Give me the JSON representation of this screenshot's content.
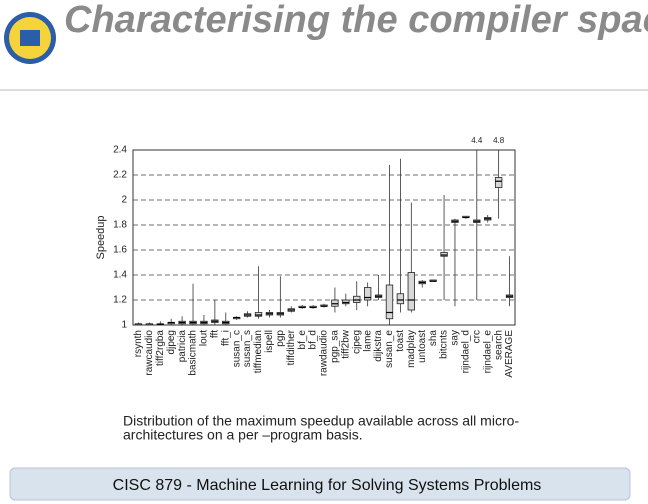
{
  "title": "Characterising the compiler space",
  "caption": [
    "Distribution of the maximum speedup available across all micro-",
    "architectures on a per –program basis."
  ],
  "footer": "CISC 879 - Machine Learning for Solving Systems Problems",
  "chart_data": {
    "type": "box",
    "ylabel": "Speedup",
    "categories": [
      "rsynth",
      "rawcaudio",
      "tiff2rgba",
      "djpeg",
      "patricia",
      "basicmath",
      "lout",
      "fft",
      "fft_i",
      "susan_c",
      "susan_s",
      "tiffmedian",
      "ispell",
      "pgp",
      "tiffdither",
      "bf_e",
      "bf_d",
      "rawdaudio",
      "pgp_sa",
      "tiff2bw",
      "cjpeg",
      "lame",
      "dijkstra",
      "susan_e",
      "toast",
      "madplay",
      "untoast",
      "sha",
      "bitcnts",
      "say",
      "rijndael_d",
      "crc",
      "rijndael_e",
      "search",
      "AVERAGE"
    ],
    "min": [
      1,
      1,
      1,
      1,
      1,
      1,
      1,
      1,
      1,
      1.04,
      1.06,
      1.05,
      1.06,
      1.06,
      1.1,
      1.13,
      1.13,
      1.14,
      1.1,
      1.15,
      1.12,
      1.15,
      1.2,
      1.0,
      1.1,
      1.1,
      1.3,
      1.35,
      1.2,
      1.15,
      1.85,
      1.2,
      1.82,
      1.85,
      1.15
    ],
    "q1": [
      1,
      1,
      1,
      1.01,
      1.01,
      1.01,
      1.01,
      1.02,
      1.01,
      1.05,
      1.07,
      1.07,
      1.08,
      1.08,
      1.11,
      1.14,
      1.14,
      1.15,
      1.15,
      1.17,
      1.18,
      1.2,
      1.22,
      1.05,
      1.17,
      1.12,
      1.33,
      1.35,
      1.55,
      1.82,
      1.86,
      1.82,
      1.84,
      2.1,
      1.22
    ],
    "median": [
      1,
      1,
      1.005,
      1.02,
      1.02,
      1.02,
      1.02,
      1.03,
      1.02,
      1.06,
      1.08,
      1.08,
      1.09,
      1.09,
      1.12,
      1.14,
      1.14,
      1.15,
      1.17,
      1.18,
      1.2,
      1.22,
      1.23,
      1.1,
      1.2,
      1.2,
      1.34,
      1.35,
      1.56,
      1.83,
      1.86,
      1.83,
      1.85,
      2.15,
      1.23
    ],
    "q3": [
      1.01,
      1.01,
      1.01,
      1.02,
      1.03,
      1.03,
      1.03,
      1.04,
      1.03,
      1.06,
      1.09,
      1.1,
      1.1,
      1.1,
      1.13,
      1.15,
      1.15,
      1.16,
      1.2,
      1.2,
      1.23,
      1.3,
      1.24,
      1.32,
      1.25,
      1.42,
      1.35,
      1.36,
      1.58,
      1.84,
      1.87,
      1.84,
      1.86,
      2.18,
      1.24
    ],
    "max": [
      1.02,
      1.02,
      1.03,
      1.05,
      1.07,
      1.33,
      1.08,
      1.2,
      1.1,
      1.07,
      1.11,
      1.47,
      1.12,
      1.39,
      1.15,
      1.16,
      1.16,
      1.17,
      1.3,
      1.25,
      1.35,
      1.34,
      1.4,
      2.28,
      2.33,
      1.98,
      1.36,
      1.36,
      2.04,
      1.85,
      1.87,
      4.4,
      1.88,
      4.8,
      1.55
    ],
    "ylim": [
      1,
      2.4
    ],
    "yticks": [
      1,
      1.2,
      1.4,
      1.6,
      1.8,
      2,
      2.2,
      2.4
    ],
    "grid": true,
    "color": "#d8d8d8"
  }
}
